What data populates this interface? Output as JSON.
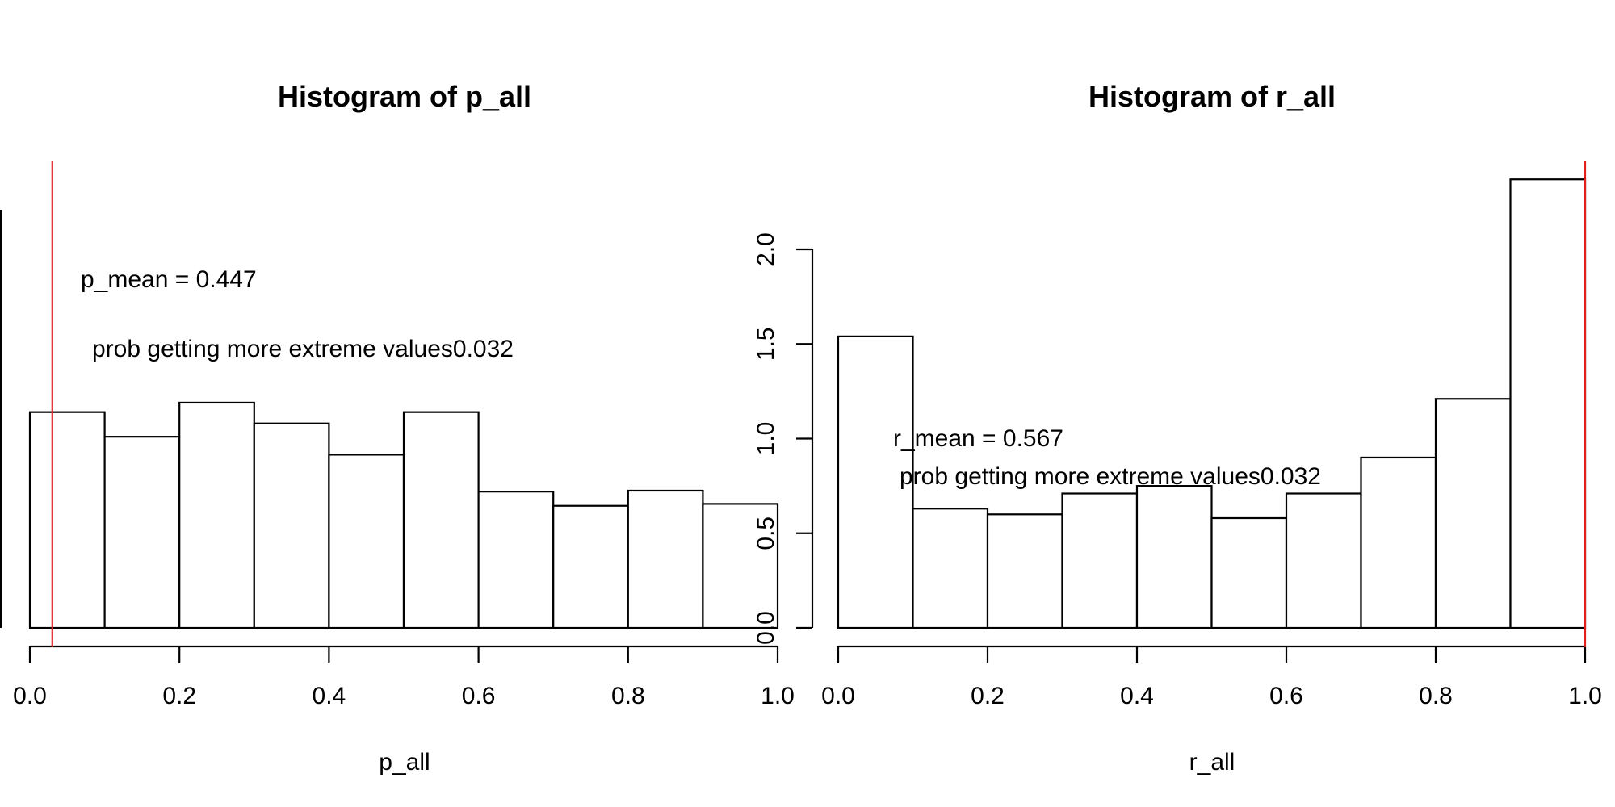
{
  "chart_data": [
    {
      "type": "bar",
      "title": "Histogram of p_all",
      "xlabel": "p_all",
      "ylabel": "",
      "bins": [
        [
          0.0,
          0.1
        ],
        [
          0.1,
          0.2
        ],
        [
          0.2,
          0.3
        ],
        [
          0.3,
          0.4
        ],
        [
          0.4,
          0.5
        ],
        [
          0.5,
          0.6
        ],
        [
          0.6,
          0.7
        ],
        [
          0.7,
          0.8
        ],
        [
          0.8,
          0.9
        ],
        [
          0.9,
          1.0
        ]
      ],
      "values": [
        1.14,
        1.01,
        1.19,
        1.08,
        0.915,
        1.14,
        0.72,
        0.645,
        0.725,
        0.655
      ],
      "xlim": [
        0.0,
        1.0
      ],
      "ylim": [
        0,
        1.2
      ],
      "x_ticks": [
        "0.0",
        "0.2",
        "0.4",
        "0.6",
        "0.8",
        "1.0"
      ],
      "y_ticks": [],
      "vline": {
        "x": 0.03,
        "color": "#e0201b"
      },
      "annotations": [
        "p_mean = 0.447",
        "prob getting more extreme values0.032"
      ]
    },
    {
      "type": "bar",
      "title": "Histogram of r_all",
      "xlabel": "r_all",
      "ylabel": "",
      "bins": [
        [
          0.0,
          0.1
        ],
        [
          0.1,
          0.2
        ],
        [
          0.2,
          0.3
        ],
        [
          0.3,
          0.4
        ],
        [
          0.4,
          0.5
        ],
        [
          0.5,
          0.6
        ],
        [
          0.6,
          0.7
        ],
        [
          0.7,
          0.8
        ],
        [
          0.8,
          0.9
        ],
        [
          0.9,
          1.0
        ]
      ],
      "values": [
        1.54,
        0.63,
        0.6,
        0.71,
        0.75,
        0.58,
        0.71,
        0.9,
        1.21,
        2.37
      ],
      "xlim": [
        0.0,
        1.0
      ],
      "ylim": [
        0,
        2.0
      ],
      "x_ticks": [
        "0.0",
        "0.2",
        "0.4",
        "0.6",
        "0.8",
        "1.0"
      ],
      "y_ticks": [
        "0.0",
        "0.5",
        "1.0",
        "1.5",
        "2.0"
      ],
      "vline": {
        "x": 1.0,
        "color": "#e0201b"
      },
      "annotations": [
        "r_mean = 0.567",
        "prob getting more extreme values0.032"
      ]
    }
  ]
}
